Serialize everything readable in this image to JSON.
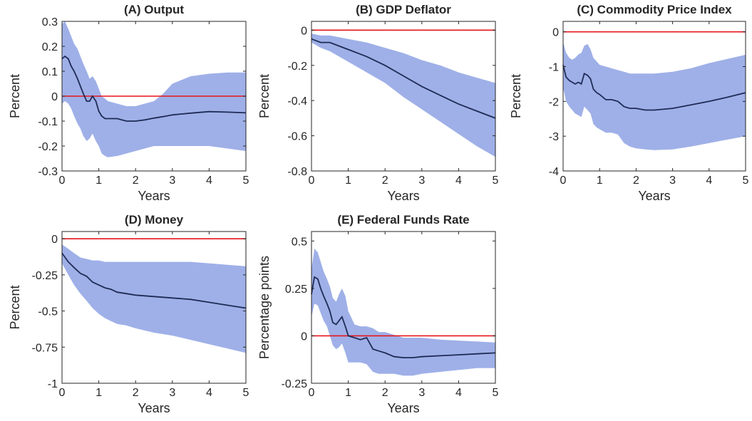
{
  "figure": {
    "colors": {
      "band": "#9fb0e8",
      "irf": "#1f2b55",
      "zero": "#e8141c",
      "axis": "#262626"
    }
  },
  "chart_data": [
    {
      "type": "area",
      "title": "(A) Output",
      "xlabel": "Years",
      "ylabel": "Percent",
      "xlim": [
        0,
        5
      ],
      "ylim": [
        -0.3,
        0.3
      ],
      "xticks": [
        0,
        1,
        2,
        3,
        4,
        5
      ],
      "yticks": [
        0.3,
        0.2,
        0.1,
        0,
        -0.1,
        -0.2,
        -0.3
      ],
      "ytick_labels": [
        "0.3",
        "0.2",
        "0.1",
        "0",
        "-0.1",
        "-0.2",
        "-0.3"
      ],
      "zero_line": 0,
      "x": [
        0,
        0.08,
        0.17,
        0.25,
        0.33,
        0.42,
        0.5,
        0.58,
        0.67,
        0.75,
        0.83,
        0.92,
        1.0,
        1.08,
        1.17,
        1.25,
        1.5,
        1.75,
        2.0,
        2.25,
        2.5,
        2.75,
        3.0,
        3.5,
        4.0,
        4.5,
        5.0
      ],
      "series": [
        {
          "values": [
            0.15,
            0.16,
            0.15,
            0.12,
            0.1,
            0.07,
            0.04,
            0.01,
            -0.02,
            -0.02,
            0.0,
            -0.02,
            -0.06,
            -0.08,
            -0.09,
            -0.09,
            -0.09,
            -0.1,
            -0.1,
            -0.095,
            -0.088,
            -0.082,
            -0.075,
            -0.068,
            -0.062,
            -0.064,
            -0.067
          ]
        }
      ],
      "band": {
        "upper": [
          0.29,
          0.3,
          0.27,
          0.24,
          0.21,
          0.19,
          0.16,
          0.13,
          0.1,
          0.07,
          0.08,
          0.06,
          0.03,
          0.0,
          -0.01,
          -0.02,
          -0.03,
          -0.04,
          -0.04,
          -0.03,
          -0.02,
          0.01,
          0.05,
          0.08,
          0.09,
          0.095,
          0.095
        ],
        "lower": [
          -0.03,
          -0.02,
          -0.03,
          -0.05,
          -0.08,
          -0.11,
          -0.13,
          -0.16,
          -0.18,
          -0.17,
          -0.15,
          -0.18,
          -0.2,
          -0.23,
          -0.24,
          -0.245,
          -0.24,
          -0.23,
          -0.22,
          -0.21,
          -0.2,
          -0.2,
          -0.2,
          -0.2,
          -0.2,
          -0.21,
          -0.22
        ]
      }
    },
    {
      "type": "area",
      "title": "(B) GDP Deflator",
      "xlabel": "Years",
      "ylabel": "Percent",
      "xlim": [
        0,
        5
      ],
      "ylim": [
        -0.8,
        0.05
      ],
      "xticks": [
        0,
        1,
        2,
        3,
        4,
        5
      ],
      "yticks": [
        0,
        -0.2,
        -0.4,
        -0.6,
        -0.8
      ],
      "ytick_labels": [
        "0",
        "-0.2",
        "-0.4",
        "-0.6",
        "-0.8"
      ],
      "zero_line": 0,
      "x": [
        0,
        0.25,
        0.5,
        0.75,
        1.0,
        1.5,
        2.0,
        2.5,
        3.0,
        3.5,
        4.0,
        4.5,
        5.0
      ],
      "series": [
        {
          "values": [
            -0.05,
            -0.07,
            -0.07,
            -0.09,
            -0.11,
            -0.15,
            -0.2,
            -0.26,
            -0.32,
            -0.37,
            -0.42,
            -0.46,
            -0.5
          ]
        }
      ],
      "band": {
        "upper": [
          -0.02,
          -0.03,
          -0.03,
          -0.04,
          -0.05,
          -0.07,
          -0.1,
          -0.13,
          -0.17,
          -0.2,
          -0.24,
          -0.27,
          -0.3
        ],
        "lower": [
          -0.07,
          -0.1,
          -0.12,
          -0.15,
          -0.18,
          -0.24,
          -0.3,
          -0.38,
          -0.45,
          -0.52,
          -0.59,
          -0.66,
          -0.72
        ]
      }
    },
    {
      "type": "area",
      "title": "(C) Commodity Price Index",
      "xlabel": "Years",
      "ylabel": "Percent",
      "xlim": [
        0,
        5
      ],
      "ylim": [
        -4,
        0.3
      ],
      "xticks": [
        0,
        1,
        2,
        3,
        4,
        5
      ],
      "yticks": [
        0,
        -1,
        -2,
        -3,
        -4
      ],
      "ytick_labels": [
        "0",
        "-1",
        "-2",
        "-3",
        "-4"
      ],
      "zero_line": 0,
      "x": [
        0,
        0.08,
        0.17,
        0.25,
        0.33,
        0.42,
        0.5,
        0.58,
        0.67,
        0.75,
        0.83,
        0.92,
        1.0,
        1.17,
        1.33,
        1.5,
        1.67,
        1.83,
        2.0,
        2.25,
        2.5,
        3.0,
        3.5,
        4.0,
        4.5,
        5.0
      ],
      "series": [
        {
          "values": [
            -0.95,
            -1.3,
            -1.4,
            -1.45,
            -1.5,
            -1.45,
            -1.5,
            -1.2,
            -1.25,
            -1.35,
            -1.65,
            -1.75,
            -1.8,
            -1.95,
            -1.95,
            -2.0,
            -2.15,
            -2.2,
            -2.2,
            -2.25,
            -2.25,
            -2.2,
            -2.1,
            -2.0,
            -1.88,
            -1.75
          ]
        }
      ],
      "band": {
        "upper": [
          -0.3,
          -0.6,
          -0.75,
          -0.8,
          -0.75,
          -0.65,
          -0.6,
          -0.4,
          -0.35,
          -0.5,
          -0.75,
          -0.85,
          -0.95,
          -1.0,
          -1.05,
          -1.1,
          -1.15,
          -1.2,
          -1.2,
          -1.2,
          -1.2,
          -1.15,
          -1.05,
          -0.9,
          -0.78,
          -0.66
        ],
        "lower": [
          -1.6,
          -2.0,
          -2.15,
          -2.25,
          -2.35,
          -2.4,
          -2.45,
          -2.15,
          -2.25,
          -2.35,
          -2.65,
          -2.75,
          -2.8,
          -2.9,
          -2.9,
          -2.95,
          -3.2,
          -3.3,
          -3.35,
          -3.38,
          -3.4,
          -3.38,
          -3.3,
          -3.2,
          -3.1,
          -3.0
        ]
      }
    },
    {
      "type": "area",
      "title": "(D) Money",
      "xlabel": "Years",
      "ylabel": "Percent",
      "xlim": [
        0,
        5
      ],
      "ylim": [
        -1,
        0.05
      ],
      "xticks": [
        0,
        1,
        2,
        3,
        4,
        5
      ],
      "yticks": [
        0,
        -0.25,
        -0.5,
        -0.75,
        -1
      ],
      "ytick_labels": [
        "0",
        "-0.25",
        "-0.5",
        "-0.75",
        "-1"
      ],
      "zero_line": 0,
      "x": [
        0,
        0.17,
        0.33,
        0.5,
        0.67,
        0.83,
        1.0,
        1.17,
        1.33,
        1.5,
        1.75,
        2.0,
        2.5,
        3.0,
        3.5,
        4.0,
        4.5,
        5.0
      ],
      "series": [
        {
          "values": [
            -0.1,
            -0.16,
            -0.2,
            -0.24,
            -0.26,
            -0.3,
            -0.32,
            -0.34,
            -0.35,
            -0.37,
            -0.38,
            -0.39,
            -0.4,
            -0.41,
            -0.42,
            -0.44,
            -0.46,
            -0.48
          ]
        }
      ],
      "band": {
        "upper": [
          -0.04,
          -0.07,
          -0.1,
          -0.13,
          -0.14,
          -0.15,
          -0.15,
          -0.16,
          -0.16,
          -0.16,
          -0.16,
          -0.16,
          -0.16,
          -0.16,
          -0.16,
          -0.17,
          -0.18,
          -0.19
        ],
        "lower": [
          -0.17,
          -0.25,
          -0.32,
          -0.38,
          -0.43,
          -0.48,
          -0.52,
          -0.55,
          -0.57,
          -0.59,
          -0.6,
          -0.62,
          -0.65,
          -0.67,
          -0.7,
          -0.73,
          -0.76,
          -0.79
        ]
      }
    },
    {
      "type": "area",
      "title": "(E) Federal Funds Rate",
      "xlabel": "Years",
      "ylabel": "Percentage points",
      "xlim": [
        0,
        5
      ],
      "ylim": [
        -0.25,
        0.55
      ],
      "xticks": [
        0,
        1,
        2,
        3,
        4,
        5
      ],
      "yticks": [
        0.5,
        0.25,
        0,
        -0.25
      ],
      "ytick_labels": [
        "0.5",
        "0.25",
        "0",
        "-0.25"
      ],
      "zero_line": 0,
      "x": [
        0,
        0.08,
        0.17,
        0.25,
        0.33,
        0.42,
        0.5,
        0.58,
        0.67,
        0.75,
        0.83,
        0.92,
        1.0,
        1.17,
        1.33,
        1.5,
        1.67,
        1.83,
        2.0,
        2.25,
        2.5,
        2.75,
        3.0,
        3.5,
        4.0,
        4.5,
        5.0
      ],
      "series": [
        {
          "values": [
            0.22,
            0.31,
            0.3,
            0.25,
            0.21,
            0.17,
            0.13,
            0.07,
            0.06,
            0.08,
            0.1,
            0.05,
            0.0,
            -0.01,
            -0.02,
            -0.01,
            -0.07,
            -0.08,
            -0.09,
            -0.11,
            -0.115,
            -0.115,
            -0.11,
            -0.105,
            -0.1,
            -0.095,
            -0.09
          ]
        }
      ],
      "band": {
        "upper": [
          0.35,
          0.46,
          0.44,
          0.39,
          0.34,
          0.3,
          0.26,
          0.2,
          0.18,
          0.22,
          0.25,
          0.21,
          0.13,
          0.06,
          0.05,
          0.05,
          0.04,
          0.02,
          0.02,
          0.005,
          -0.01,
          -0.01,
          -0.01,
          -0.02,
          -0.025,
          -0.03,
          -0.035
        ],
        "lower": [
          0.1,
          0.17,
          0.16,
          0.12,
          0.08,
          0.05,
          0.0,
          -0.05,
          -0.07,
          -0.06,
          -0.04,
          -0.09,
          -0.14,
          -0.14,
          -0.14,
          -0.15,
          -0.19,
          -0.2,
          -0.2,
          -0.2,
          -0.21,
          -0.21,
          -0.2,
          -0.19,
          -0.18,
          -0.17,
          -0.17
        ]
      }
    }
  ]
}
